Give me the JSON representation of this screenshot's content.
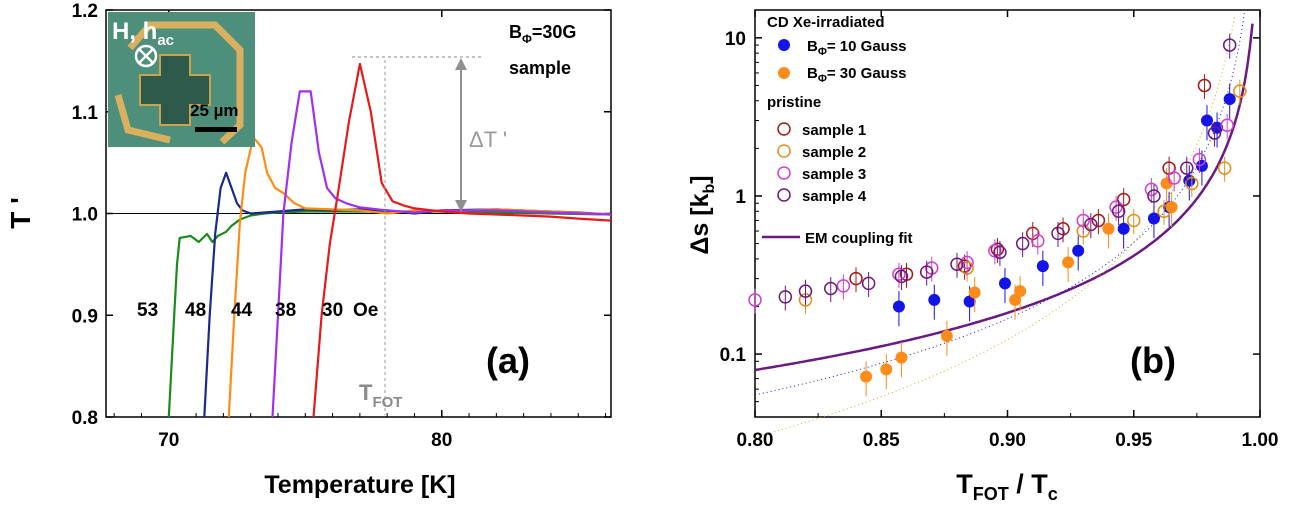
{
  "chart_data": [
    {
      "type": "line",
      "panel_label": "(a)",
      "xlabel": "Temperature [K]",
      "ylabel": "T '",
      "xlim": [
        67.7,
        86.2
      ],
      "ylim": [
        0.8,
        1.2
      ],
      "xticks": [
        70,
        80
      ],
      "yticks": [
        0.8,
        0.9,
        1.0,
        1.1,
        1.2
      ],
      "reference_line_y": 1.0,
      "annotations": {
        "field": "BΦ=30G",
        "sample": "sample",
        "delta": "ΔT '",
        "tfot": "T",
        "tfot_sub": "FOT",
        "inset_field": "H, h",
        "inset_field_sub": "ac",
        "inset_scale": "25 µm",
        "field_units": "Oe"
      },
      "series": [
        {
          "label": "53",
          "color": "#1a8a1a",
          "x": [
            70.0,
            70.2,
            70.3,
            70.4,
            70.8,
            71.1,
            71.4,
            71.6,
            71.8,
            72.1,
            72.3,
            72.6,
            73.0,
            73.5,
            74.0,
            75.0,
            76.0,
            77.0,
            78.0,
            79.0,
            80.0,
            82.0,
            84.0,
            86.2
          ],
          "y": [
            0.8,
            0.9,
            0.95,
            0.976,
            0.978,
            0.972,
            0.98,
            0.972,
            0.978,
            0.982,
            0.988,
            0.994,
            0.998,
            1.0,
            1.001,
            1.002,
            1.002,
            1.002,
            1.002,
            1.002,
            1.002,
            1.001,
            1.0,
            0.999
          ]
        },
        {
          "label": "48",
          "color": "#1a2a8c",
          "x": [
            71.3,
            71.5,
            71.7,
            71.9,
            72.1,
            72.3,
            72.5,
            72.7,
            73.0,
            74.0,
            75.0,
            76.0,
            77.0,
            78.0,
            79.0,
            80.0,
            82.0,
            84.0,
            85.0,
            86.2
          ],
          "y": [
            0.8,
            0.9,
            0.98,
            1.025,
            1.04,
            1.025,
            1.01,
            1.003,
            1.0,
            1.002,
            1.004,
            1.003,
            1.004,
            1.003,
            1.0,
            1.003,
            1.004,
            1.002,
            1.001,
            0.999
          ]
        },
        {
          "label": "44",
          "color": "#ff8c10",
          "x": [
            72.2,
            72.4,
            72.6,
            72.8,
            73.1,
            73.4,
            73.6,
            73.9,
            74.2,
            74.6,
            75.0,
            76.0,
            77.0,
            78.0,
            79.0,
            80.0,
            82.0,
            84.0,
            86.2
          ],
          "y": [
            0.8,
            0.9,
            0.99,
            1.04,
            1.075,
            1.065,
            1.04,
            1.025,
            1.02,
            1.01,
            1.005,
            1.004,
            1.003,
            1.0,
            1.003,
            1.002,
            1.004,
            1.002,
            0.999
          ]
        },
        {
          "label": "38",
          "color": "#a030f0",
          "x": [
            73.8,
            74.0,
            74.2,
            74.5,
            74.8,
            75.2,
            75.5,
            75.8,
            76.1,
            76.5,
            77.0,
            78.0,
            79.0,
            80.0,
            82.0,
            84.0,
            86.2
          ],
          "y": [
            0.8,
            0.9,
            1.0,
            1.07,
            1.12,
            1.12,
            1.06,
            1.025,
            1.015,
            1.01,
            1.006,
            1.003,
            1.001,
            1.003,
            1.003,
            1.001,
            0.999
          ]
        },
        {
          "label": "30",
          "color": "#e61a1a",
          "x": [
            75.3,
            75.6,
            75.9,
            76.2,
            76.6,
            77.0,
            77.4,
            77.8,
            78.2,
            78.6,
            79.0,
            80.0,
            81.0,
            82.0,
            83.0,
            84.0,
            85.0,
            86.2
          ],
          "y": [
            0.8,
            0.9,
            0.97,
            1.02,
            1.09,
            1.147,
            1.1,
            1.03,
            1.012,
            1.008,
            1.005,
            1.002,
            1.0,
            0.999,
            0.998,
            0.997,
            0.995,
            0.993
          ]
        }
      ]
    },
    {
      "type": "scatter",
      "panel_label": "(b)",
      "xlabel": "T",
      "xlabel_sub1": "FOT",
      "xlabel_mid": " / T",
      "xlabel_sub2": "c",
      "ylabel": "Δs [k",
      "ylabel_sub": "b",
      "ylabel_end": "]",
      "xlim": [
        0.8,
        1.0
      ],
      "ylim": [
        0.04,
        15
      ],
      "yscale": "log",
      "xticks": [
        0.8,
        0.85,
        0.9,
        0.95,
        1.0
      ],
      "xtick_labels": [
        "0.80",
        "0.85",
        "0.90",
        "0.95",
        "1.00"
      ],
      "yticks": [
        0.1,
        1,
        10
      ],
      "ytick_labels": [
        "0.1",
        "1",
        "10"
      ],
      "legend": {
        "group1": "CD Xe-irradiated",
        "series1": "BΦ= 10 Gauss",
        "series2": "BΦ= 30 Gauss",
        "group2": "pristine",
        "series3": "sample 1",
        "series4": "sample 2",
        "series5": "sample 3",
        "series6": "sample 4",
        "fit": "EM coupling fit",
        "placement": "top-left"
      },
      "series": [
        {
          "name": "BΦ= 10 Gauss",
          "marker": "filled",
          "color": "#1414e6",
          "x": [
            0.857,
            0.871,
            0.885,
            0.899,
            0.914,
            0.928,
            0.946,
            0.958,
            0.964,
            0.972,
            0.977,
            0.979,
            0.983,
            0.988
          ],
          "y": [
            0.2,
            0.22,
            0.215,
            0.28,
            0.36,
            0.45,
            0.62,
            0.72,
            0.85,
            1.25,
            1.55,
            3.0,
            2.7,
            4.1
          ]
        },
        {
          "name": "BΦ= 30 Gauss",
          "marker": "filled",
          "color": "#ff8c1a",
          "x": [
            0.844,
            0.852,
            0.858,
            0.876,
            0.887,
            0.903,
            0.905,
            0.924,
            0.94,
            0.963,
            0.965
          ],
          "y": [
            0.072,
            0.08,
            0.095,
            0.13,
            0.245,
            0.22,
            0.25,
            0.38,
            0.62,
            1.2,
            0.85
          ]
        },
        {
          "name": "sample 1",
          "marker": "open",
          "color": "#a01a1a",
          "x": [
            0.84,
            0.86,
            0.883,
            0.896,
            0.91,
            0.922,
            0.936,
            0.946,
            0.964,
            0.978
          ],
          "y": [
            0.3,
            0.32,
            0.36,
            0.46,
            0.58,
            0.62,
            0.7,
            0.95,
            1.5,
            5.0
          ]
        },
        {
          "name": "sample 2",
          "marker": "open",
          "color": "#e09020",
          "x": [
            0.82,
            0.884,
            0.93,
            0.95,
            0.962,
            0.973,
            0.986,
            0.992
          ],
          "y": [
            0.22,
            0.35,
            0.6,
            0.7,
            0.8,
            1.2,
            1.5,
            4.6
          ]
        },
        {
          "name": "sample 3",
          "marker": "open",
          "color": "#d040d0",
          "x": [
            0.8,
            0.835,
            0.857,
            0.87,
            0.884,
            0.895,
            0.912,
            0.93,
            0.943,
            0.957,
            0.966,
            0.976,
            0.987
          ],
          "y": [
            0.22,
            0.27,
            0.32,
            0.35,
            0.38,
            0.45,
            0.52,
            0.7,
            0.85,
            1.1,
            1.3,
            1.7,
            2.8
          ]
        },
        {
          "name": "sample 4",
          "marker": "open",
          "color": "#6a1a80",
          "x": [
            0.812,
            0.82,
            0.83,
            0.845,
            0.858,
            0.868,
            0.88,
            0.897,
            0.906,
            0.92,
            0.933,
            0.944,
            0.958,
            0.971,
            0.982,
            0.988
          ],
          "y": [
            0.23,
            0.25,
            0.26,
            0.28,
            0.31,
            0.33,
            0.37,
            0.44,
            0.5,
            0.58,
            0.66,
            0.8,
            1.0,
            1.5,
            2.5,
            9.0
          ]
        }
      ],
      "fit": {
        "name": "EM coupling fit",
        "color": "#6a1a80"
      }
    }
  ]
}
